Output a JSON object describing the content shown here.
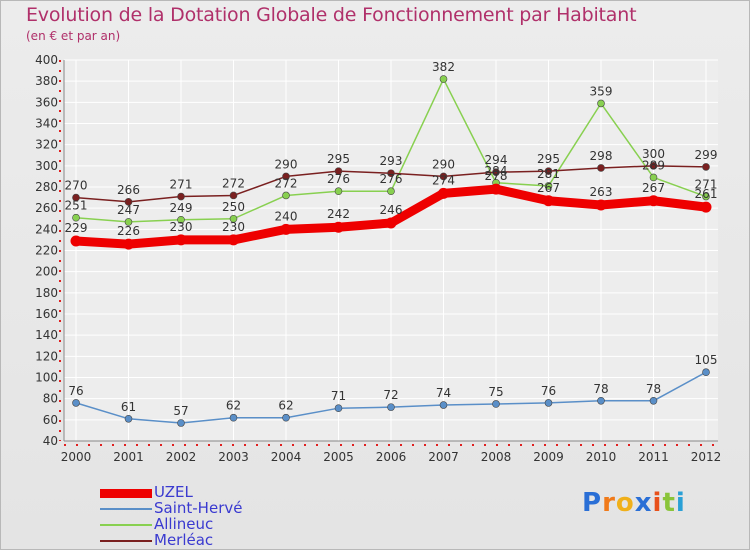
{
  "title": "Evolution de la Dotation Globale de Fonctionnement par Habitant",
  "subtitle": "(en € et par an)",
  "logo": {
    "letters": [
      "P",
      "r",
      "o",
      "x",
      "i",
      "t",
      "i"
    ],
    "colors": [
      "#2a6fd6",
      "#f07a1a",
      "#f0b01a",
      "#2a6fd6",
      "#e8501a",
      "#8ac43a",
      "#2aa0d6"
    ]
  },
  "chart_data": {
    "type": "line",
    "title": "Evolution de la Dotation Globale de Fonctionnement par Habitant",
    "ylabel": "(en € et par an)",
    "xlabel": "",
    "ylim": [
      40,
      400
    ],
    "yticks": [
      40,
      60,
      80,
      100,
      120,
      140,
      160,
      180,
      200,
      220,
      240,
      260,
      280,
      300,
      320,
      340,
      360,
      380,
      400
    ],
    "categories": [
      "2000",
      "2001",
      "2002",
      "2003",
      "2004",
      "2005",
      "2006",
      "2007",
      "2008",
      "2009",
      "2010",
      "2011",
      "2012"
    ],
    "series": [
      {
        "name": "UZEL",
        "color": "#ee0000",
        "values": [
          229,
          226,
          230,
          230,
          240,
          242,
          246,
          274,
          278,
          267,
          263,
          267,
          261
        ]
      },
      {
        "name": "Saint-Hervé",
        "color": "#5a8fc8",
        "values": [
          76,
          61,
          57,
          62,
          62,
          71,
          72,
          74,
          75,
          76,
          78,
          78,
          105
        ]
      },
      {
        "name": "Allineuc",
        "color": "#88d050",
        "values": [
          251,
          247,
          249,
          250,
          272,
          276,
          276,
          382,
          284,
          281,
          359,
          289,
          271
        ]
      },
      {
        "name": "Merléac",
        "color": "#7a2020",
        "values": [
          270,
          266,
          271,
          272,
          290,
          295,
          293,
          290,
          294,
          295,
          298,
          300,
          299
        ]
      }
    ],
    "legend_position": "bottom-left",
    "grid": true
  }
}
